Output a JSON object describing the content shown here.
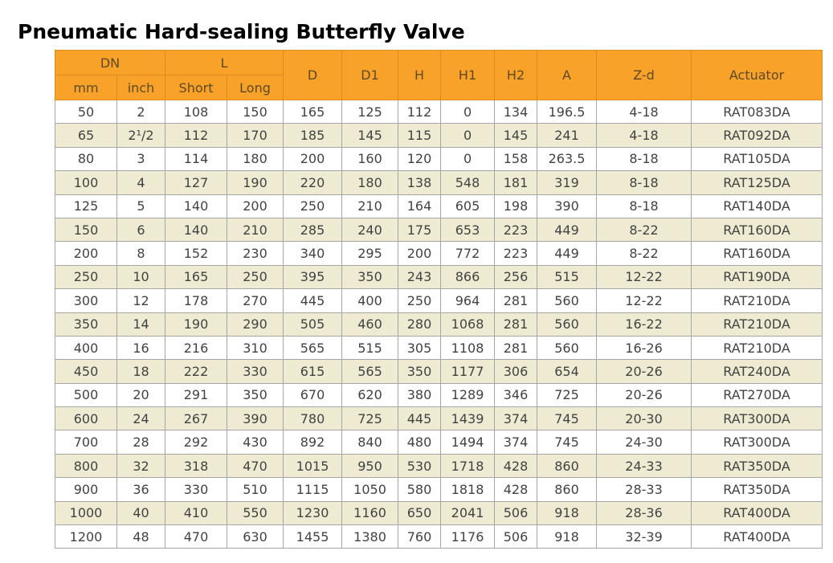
{
  "title": "Pneumatic Hard-sealing Butterfly Valve",
  "table": {
    "header": {
      "dn": "DN",
      "l": "L",
      "mm": "mm",
      "inch": "inch",
      "short": "Short",
      "long": "Long",
      "d": "D",
      "d1": "D1",
      "h": "H",
      "h1": "H1",
      "h2": "H2",
      "a": "A",
      "zd": "Z-d",
      "actuator": "Actuator"
    },
    "rows": [
      [
        "50",
        "2",
        "108",
        "150",
        "165",
        "125",
        "112",
        "0",
        "134",
        "196.5",
        "4-18",
        "RAT083DA"
      ],
      [
        "65",
        "2¹/2",
        "112",
        "170",
        "185",
        "145",
        "115",
        "0",
        "145",
        "241",
        "4-18",
        "RAT092DA"
      ],
      [
        "80",
        "3",
        "114",
        "180",
        "200",
        "160",
        "120",
        "0",
        "158",
        "263.5",
        "8-18",
        "RAT105DA"
      ],
      [
        "100",
        "4",
        "127",
        "190",
        "220",
        "180",
        "138",
        "548",
        "181",
        "319",
        "8-18",
        "RAT125DA"
      ],
      [
        "125",
        "5",
        "140",
        "200",
        "250",
        "210",
        "164",
        "605",
        "198",
        "390",
        "8-18",
        "RAT140DA"
      ],
      [
        "150",
        "6",
        "140",
        "210",
        "285",
        "240",
        "175",
        "653",
        "223",
        "449",
        "8-22",
        "RAT160DA"
      ],
      [
        "200",
        "8",
        "152",
        "230",
        "340",
        "295",
        "200",
        "772",
        "223",
        "449",
        "8-22",
        "RAT160DA"
      ],
      [
        "250",
        "10",
        "165",
        "250",
        "395",
        "350",
        "243",
        "866",
        "256",
        "515",
        "12-22",
        "RAT190DA"
      ],
      [
        "300",
        "12",
        "178",
        "270",
        "445",
        "400",
        "250",
        "964",
        "281",
        "560",
        "12-22",
        "RAT210DA"
      ],
      [
        "350",
        "14",
        "190",
        "290",
        "505",
        "460",
        "280",
        "1068",
        "281",
        "560",
        "16-22",
        "RAT210DA"
      ],
      [
        "400",
        "16",
        "216",
        "310",
        "565",
        "515",
        "305",
        "1108",
        "281",
        "560",
        "16-26",
        "RAT210DA"
      ],
      [
        "450",
        "18",
        "222",
        "330",
        "615",
        "565",
        "350",
        "1177",
        "306",
        "654",
        "20-26",
        "RAT240DA"
      ],
      [
        "500",
        "20",
        "291",
        "350",
        "670",
        "620",
        "380",
        "1289",
        "346",
        "725",
        "20-26",
        "RAT270DA"
      ],
      [
        "600",
        "24",
        "267",
        "390",
        "780",
        "725",
        "445",
        "1439",
        "374",
        "745",
        "20-30",
        "RAT300DA"
      ],
      [
        "700",
        "28",
        "292",
        "430",
        "892",
        "840",
        "480",
        "1494",
        "374",
        "745",
        "24-30",
        "RAT300DA"
      ],
      [
        "800",
        "32",
        "318",
        "470",
        "1015",
        "950",
        "530",
        "1718",
        "428",
        "860",
        "24-33",
        "RAT350DA"
      ],
      [
        "900",
        "36",
        "330",
        "510",
        "1115",
        "1050",
        "580",
        "1818",
        "428",
        "860",
        "28-33",
        "RAT350DA"
      ],
      [
        "1000",
        "40",
        "410",
        "550",
        "1230",
        "1160",
        "650",
        "2041",
        "506",
        "918",
        "28-36",
        "RAT400DA"
      ],
      [
        "1200",
        "48",
        "470",
        "630",
        "1455",
        "1380",
        "760",
        "1176",
        "506",
        "918",
        "32-39",
        "RAT400DA"
      ]
    ],
    "colors": {
      "header_bg": "#F9A22A",
      "header_border": "#DB8E1E",
      "header_text": "#5D4A22",
      "row_bg": "#FFFFFF",
      "row_alt_bg": "#EEEBD2",
      "body_border": "#A6A6A6",
      "body_text": "#424242",
      "title_color": "#000000"
    }
  }
}
